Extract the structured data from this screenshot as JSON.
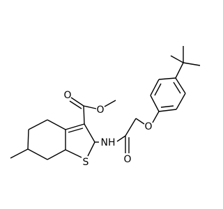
{
  "atoms": {
    "ester_carbonyl_o": "O",
    "ester_o": "O",
    "ring_s": "S",
    "amide_nh": "NH",
    "amide_o": "O",
    "ether_o": "O"
  }
}
